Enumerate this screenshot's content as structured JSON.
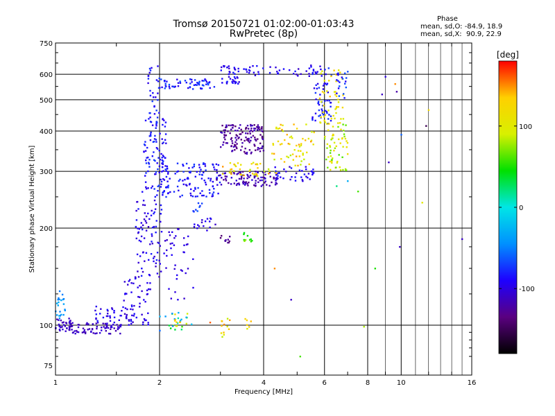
{
  "chart_data": {
    "type": "scatter",
    "title": "Tromsø 20150721 01:02:00-01:03:43",
    "subtitle": "RwPretec (8p)",
    "xlabel": "Frequency [MHz]",
    "ylabel": "Stationary phase Virtual Height [km]",
    "x_scale": "log",
    "y_scale": "log",
    "xlim": [
      1,
      16
    ],
    "ylim": [
      70,
      750
    ],
    "x_ticks": [
      1,
      2,
      4,
      6,
      8,
      10,
      16
    ],
    "x_tick_labels": [
      "1",
      "2",
      "4",
      "6",
      "8",
      "10",
      "16"
    ],
    "y_ticks": [
      75,
      100,
      200,
      300,
      400,
      500,
      600,
      750
    ],
    "y_tick_labels": [
      "75",
      "100",
      "200",
      "300",
      "400",
      "500",
      "600",
      "750"
    ],
    "grid": true,
    "stats_title": "Phase",
    "stats_lines": [
      "mean, sd,O: -84.9, 18.9",
      "mean, sd,X:  90.9, 22.9"
    ],
    "colorbar": {
      "label": "[deg]",
      "range": [
        -180,
        180
      ],
      "ticks": [
        100,
        0,
        -100
      ],
      "tick_labels": [
        "100",
        "0",
        "-100"
      ],
      "colormap": [
        "#000000",
        "#5a0080",
        "#1e00ff",
        "#0090ff",
        "#00e6e6",
        "#00e000",
        "#d8f000",
        "#ffd000",
        "#ff0000"
      ]
    },
    "series": [
      {
        "clusters": [
          {
            "x": [
              1.0,
              1.12
            ],
            "y": [
              95,
              105
            ],
            "phase": [
              -120,
              -100
            ],
            "n": 40
          },
          {
            "x": [
              1.0,
              1.08
            ],
            "y": [
              105,
              128
            ],
            "phase": [
              -60,
              -30
            ],
            "n": 22
          },
          {
            "x": [
              1.12,
              1.55
            ],
            "y": [
              94,
              102
            ],
            "phase": [
              -120,
              -100
            ],
            "n": 70
          },
          {
            "x": [
              1.3,
              1.7
            ],
            "y": [
              100,
              115
            ],
            "phase": [
              -110,
              -80
            ],
            "n": 45
          },
          {
            "x": [
              1.55,
              1.88
            ],
            "y": [
              100,
              140
            ],
            "phase": [
              -110,
              -90
            ],
            "n": 45
          },
          {
            "x": [
              1.7,
              2.05
            ],
            "y": [
              140,
              260
            ],
            "phase": [
              -110,
              -80
            ],
            "n": 90
          },
          {
            "x": [
              1.8,
              2.1
            ],
            "y": [
              260,
              450
            ],
            "phase": [
              -100,
              -70
            ],
            "n": 100
          },
          {
            "x": [
              1.85,
              2.0
            ],
            "y": [
              450,
              640
            ],
            "phase": [
              -100,
              -70
            ],
            "n": 28
          },
          {
            "x": [
              2.05,
              2.5
            ],
            "y": [
              120,
              200
            ],
            "phase": [
              -110,
              -90
            ],
            "n": 40
          },
          {
            "x": [
              2.0,
              2.5
            ],
            "y": [
              96,
              110
            ],
            "phase": [
              -90,
              90
            ],
            "n": 24
          },
          {
            "x": [
              2.2,
              2.3
            ],
            "y": [
              98,
              112
            ],
            "phase": [
              90,
              140
            ],
            "n": 8
          },
          {
            "x": [
              2.0,
              3.0
            ],
            "y": [
              250,
              320
            ],
            "phase": [
              -100,
              -70
            ],
            "n": 120
          },
          {
            "x": [
              2.0,
              2.9
            ],
            "y": [
              540,
              580
            ],
            "phase": [
              -100,
              -60
            ],
            "n": 60
          },
          {
            "x": [
              2.5,
              2.9
            ],
            "y": [
              195,
              215
            ],
            "phase": [
              -110,
              -90
            ],
            "n": 16
          },
          {
            "x": [
              2.5,
              2.7
            ],
            "y": [
              225,
              240
            ],
            "phase": [
              -80,
              -60
            ],
            "n": 8
          },
          {
            "x": [
              3.0,
              3.2
            ],
            "y": [
              92,
              105
            ],
            "phase": [
              80,
              150
            ],
            "n": 12
          },
          {
            "x": [
              3.0,
              3.4
            ],
            "y": [
              560,
              640
            ],
            "phase": [
              -110,
              -80
            ],
            "n": 40
          },
          {
            "x": [
              3.0,
              4.0
            ],
            "y": [
              340,
              420
            ],
            "phase": [
              -140,
              -110
            ],
            "n": 140
          },
          {
            "x": [
              2.9,
              4.4
            ],
            "y": [
              270,
              300
            ],
            "phase": [
              -130,
              -100
            ],
            "n": 100
          },
          {
            "x": [
              3.0,
              3.2
            ],
            "y": [
              180,
              190
            ],
            "phase": [
              -140,
              -120
            ],
            "n": 10
          },
          {
            "x": [
              3.5,
              3.7
            ],
            "y": [
              180,
              195
            ],
            "phase": [
              40,
              80
            ],
            "n": 10
          },
          {
            "x": [
              3.0,
              4.5
            ],
            "y": [
              290,
              320
            ],
            "phase": [
              80,
              150
            ],
            "n": 40
          },
          {
            "x": [
              3.5,
              3.7
            ],
            "y": [
              95,
              105
            ],
            "phase": [
              80,
              150
            ],
            "n": 6
          },
          {
            "x": [
              3.5,
              5.8
            ],
            "y": [
              590,
              640
            ],
            "phase": [
              -110,
              -80
            ],
            "n": 40
          },
          {
            "x": [
              4.2,
              5.6
            ],
            "y": [
              280,
              310
            ],
            "phase": [
              -110,
              -80
            ],
            "n": 40
          },
          {
            "x": [
              4.2,
              5.6
            ],
            "y": [
              310,
              420
            ],
            "phase": [
              80,
              150
            ],
            "n": 60
          },
          {
            "x": [
              5.5,
              6.3
            ],
            "y": [
              420,
              640
            ],
            "phase": [
              -100,
              -70
            ],
            "n": 60
          },
          {
            "x": [
              5.8,
              6.8
            ],
            "y": [
              420,
              620
            ],
            "phase": [
              90,
              140
            ],
            "n": 50
          },
          {
            "x": [
              6.0,
              7.0
            ],
            "y": [
              300,
              430
            ],
            "phase": [
              60,
              120
            ],
            "n": 60
          },
          {
            "x": [
              6.5,
              7.0
            ],
            "y": [
              500,
              620
            ],
            "phase": [
              -100,
              -60
            ],
            "n": 20
          }
        ]
      }
    ],
    "outliers": [
      {
        "x": 4.8,
        "y": 120,
        "phase": -110
      },
      {
        "x": 4.3,
        "y": 150,
        "phase": 150
      },
      {
        "x": 5.1,
        "y": 80,
        "phase": 60
      },
      {
        "x": 7.8,
        "y": 99,
        "phase": 80
      },
      {
        "x": 8.4,
        "y": 150,
        "phase": 50
      },
      {
        "x": 8.8,
        "y": 520,
        "phase": -110
      },
      {
        "x": 9.0,
        "y": 590,
        "phase": -100
      },
      {
        "x": 9.2,
        "y": 320,
        "phase": -110
      },
      {
        "x": 9.9,
        "y": 175,
        "phase": -110
      },
      {
        "x": 9.7,
        "y": 530,
        "phase": -120
      },
      {
        "x": 10.0,
        "y": 390,
        "phase": -60
      },
      {
        "x": 9.6,
        "y": 560,
        "phase": 150
      },
      {
        "x": 11.8,
        "y": 415,
        "phase": -150
      },
      {
        "x": 11.5,
        "y": 240,
        "phase": 100
      },
      {
        "x": 12.0,
        "y": 465,
        "phase": 120
      },
      {
        "x": 15.0,
        "y": 185,
        "phase": -110
      },
      {
        "x": 6.5,
        "y": 270,
        "phase": 20
      },
      {
        "x": 7.0,
        "y": 280,
        "phase": -30
      },
      {
        "x": 7.5,
        "y": 260,
        "phase": 60
      },
      {
        "x": 2.8,
        "y": 102,
        "phase": 160
      }
    ]
  }
}
